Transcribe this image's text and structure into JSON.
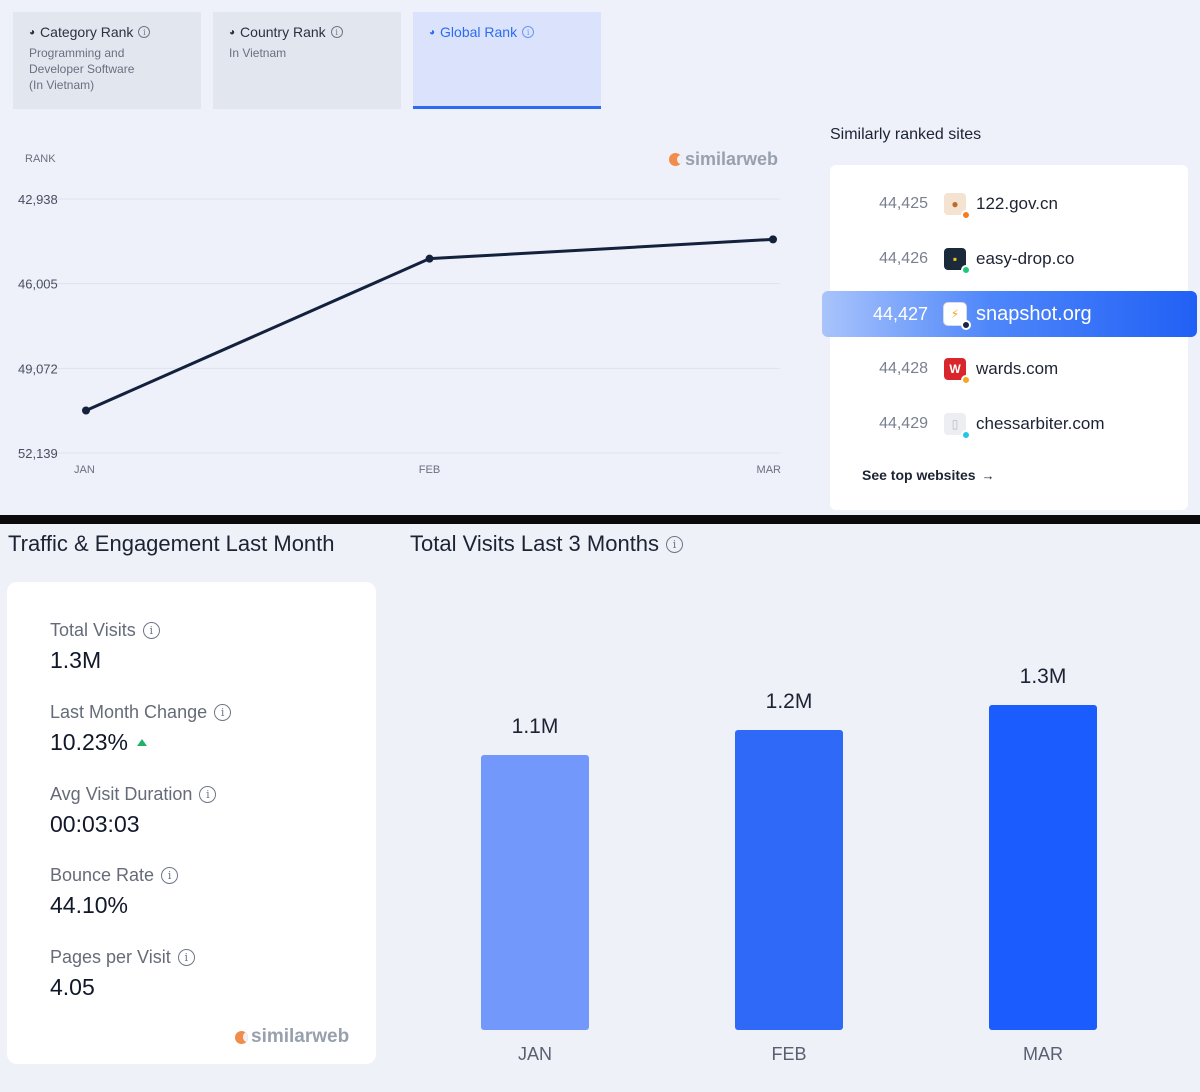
{
  "rank_tabs": [
    {
      "label": "Category Rank",
      "sub": "Programming and\nDeveloper Software\n(In Vietnam)"
    },
    {
      "label": "Country Rank",
      "sub": "In Vietnam"
    },
    {
      "label": "Global Rank",
      "sub": ""
    }
  ],
  "brand": "similarweb",
  "similar_sites": {
    "title": "Similarly ranked sites",
    "sites": [
      {
        "rank": "44,425",
        "name": "122.gov.cn",
        "icon": "pot-icon",
        "icon_bg": "#f3e3d0",
        "icon_glyph": "●",
        "icon_color": "#c0692c",
        "dot": "#f57c22"
      },
      {
        "rank": "44,426",
        "name": "easy-drop.co",
        "icon": "easy-drop-icon",
        "icon_bg": "#1b2a3a",
        "icon_glyph": "▪",
        "icon_color": "#f5c518",
        "dot": "#1ec77a"
      },
      {
        "rank": "44,427",
        "name": "snapshot.org",
        "icon": "lightning-icon",
        "icon_bg": "#ffffff",
        "icon_glyph": "⚡",
        "icon_color": "#f5a623",
        "dot": "#1a2440"
      },
      {
        "rank": "44,428",
        "name": "wards.com",
        "icon": "wards-w-icon",
        "icon_bg": "#d9262c",
        "icon_glyph": "W",
        "icon_color": "#ffffff",
        "dot": "#f5a623"
      },
      {
        "rank": "44,429",
        "name": "chessarbiter.com",
        "icon": "document-icon",
        "icon_bg": "#eceef2",
        "icon_glyph": "▯",
        "icon_color": "#b8bcc6",
        "dot": "#22c7e8"
      }
    ],
    "see_top": "See top websites"
  },
  "traffic": {
    "title": "Traffic & Engagement Last Month",
    "metrics": [
      {
        "label": "Total Visits",
        "value": "1.3M"
      },
      {
        "label": "Last Month Change",
        "value": "10.23%",
        "trend": "up"
      },
      {
        "label": "Avg Visit Duration",
        "value": "00:03:03"
      },
      {
        "label": "Bounce Rate",
        "value": "44.10%"
      },
      {
        "label": "Pages per Visit",
        "value": "4.05"
      }
    ]
  },
  "visits_title": "Total Visits Last 3 Months",
  "colors": {
    "accent": "#2d6cf0",
    "line": "#13213d",
    "bar_light": "#7398fb",
    "bar_mid": "#2e6af7",
    "bar_dark": "#1a5cfd",
    "up": "#1db36a"
  },
  "chart_data": [
    {
      "type": "line",
      "title": "",
      "ylabel": "RANK",
      "categories": [
        "JAN",
        "FEB",
        "MAR"
      ],
      "y_ticks": [
        "42,938",
        "46,005",
        "49,072",
        "52,139"
      ],
      "ylim": [
        52139,
        42938
      ],
      "inverted_y": true,
      "series": [
        {
          "values": [
            50600,
            45100,
            44400
          ]
        }
      ]
    },
    {
      "type": "bar",
      "title": "Total Visits Last 3 Months",
      "categories": [
        "JAN",
        "FEB",
        "MAR"
      ],
      "values": [
        1.1,
        1.2,
        1.3
      ],
      "value_labels": [
        "1.1M",
        "1.2M",
        "1.3M"
      ],
      "unit": "M"
    }
  ]
}
